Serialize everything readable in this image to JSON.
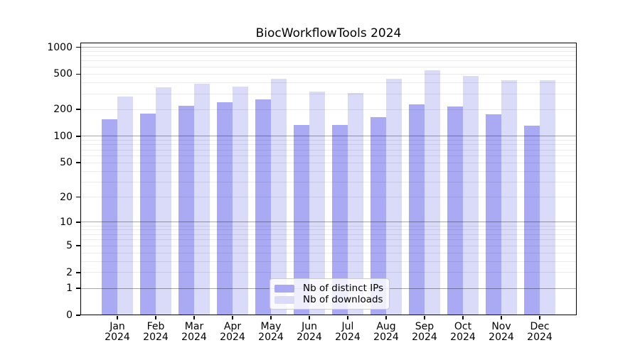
{
  "chart_data": {
    "type": "bar",
    "title": "BiocWorkflowTools 2024",
    "categories": [
      "Jan",
      "Feb",
      "Mar",
      "Apr",
      "May",
      "Jun",
      "Jul",
      "Aug",
      "Sep",
      "Oct",
      "Nov",
      "Dec"
    ],
    "category_year": "2024",
    "series": [
      {
        "name": "Nb of distinct IPs",
        "color": "#a9a9f4",
        "values": [
          155,
          180,
          220,
          240,
          260,
          134,
          134,
          165,
          230,
          218,
          177,
          132
        ]
      },
      {
        "name": "Nb of downloads",
        "color": "#dadaf9",
        "values": [
          280,
          355,
          390,
          360,
          440,
          320,
          305,
          440,
          550,
          480,
          430,
          430
        ]
      }
    ],
    "yscale": "log10(1+x)",
    "ylim": [
      0,
      1000
    ],
    "y_ticks": [
      1000,
      500,
      200,
      100,
      50,
      20,
      10,
      5,
      2,
      1,
      0
    ],
    "grid": {
      "major": [
        1,
        10,
        100,
        1000
      ],
      "minor": [
        2,
        3,
        4,
        5,
        6,
        7,
        8,
        9,
        20,
        30,
        40,
        50,
        60,
        70,
        80,
        90,
        200,
        300,
        400,
        500,
        600,
        700,
        800,
        900
      ]
    },
    "legend": {
      "position": "lower center"
    },
    "axis_color": "#000000",
    "text_color": "#000000",
    "background_color": "#ffffff"
  }
}
